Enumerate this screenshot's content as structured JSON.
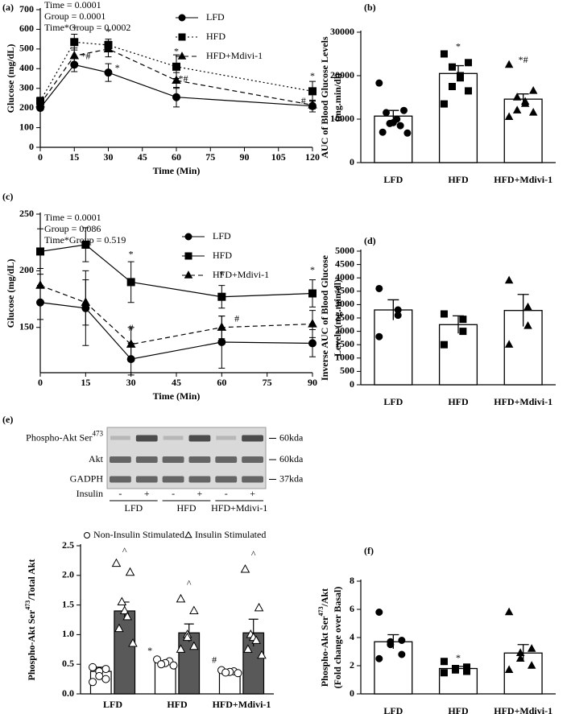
{
  "chart_data": [
    {
      "type": "line",
      "panel": "(a)",
      "stats": [
        "Time = 0.0001",
        "Group = 0.0001",
        "Time*Group = 0.0002"
      ],
      "xlabel": "Time (Min)",
      "ylabel": [
        "Glucose (mg/dL)"
      ],
      "x": [
        0,
        15,
        30,
        60,
        120
      ],
      "xlim": [
        0,
        120
      ],
      "xticks": [
        0,
        15,
        30,
        45,
        60,
        75,
        90,
        105,
        120
      ],
      "ylim": [
        0,
        700
      ],
      "yticks": [
        0,
        100,
        200,
        300,
        400,
        500,
        600,
        700
      ],
      "series": [
        {
          "name": "LFD",
          "color": "#000000",
          "marker": "circle",
          "dash": "solid",
          "values": [
            200,
            420,
            380,
            255,
            210
          ],
          "errors": [
            10,
            35,
            45,
            50,
            30
          ]
        },
        {
          "name": "HFD",
          "color": "#000000",
          "marker": "square",
          "dash": "dotted",
          "values": [
            235,
            535,
            520,
            410,
            285
          ],
          "errors": [
            20,
            40,
            30,
            60,
            50
          ]
        },
        {
          "name": "HFD+Mdivi-1",
          "color": "#000000",
          "marker": "triangle",
          "dash": "dashed",
          "values": [
            220,
            465,
            500,
            340,
            215
          ],
          "errors": [
            15,
            40,
            40,
            40,
            20
          ]
        }
      ],
      "annotations": [
        {
          "text": "*",
          "x": 15,
          "y": 600
        },
        {
          "text": "*#",
          "x": 20,
          "y": 460
        },
        {
          "text": "*",
          "x": 30,
          "y": 585
        },
        {
          "text": "*",
          "x": 34,
          "y": 400
        },
        {
          "text": "*",
          "x": 60,
          "y": 485
        },
        {
          "text": "*#",
          "x": 63,
          "y": 345
        },
        {
          "text": "*",
          "x": 120,
          "y": 360
        },
        {
          "text": "#",
          "x": 116,
          "y": 232
        }
      ]
    },
    {
      "type": "bar",
      "panel": "(b)",
      "ylabel": [
        "AUC of Blood Glucose Levels",
        "(mg.min/dl)"
      ],
      "categories": [
        "LFD",
        "HFD",
        "HFD+Mdivi-1"
      ],
      "values": [
        10700,
        20500,
        14600
      ],
      "errors": [
        1300,
        1800,
        1200
      ],
      "color": "#ffffff",
      "markers": [
        "circle",
        "square",
        "triangle"
      ],
      "points": [
        [
          18300,
          12000,
          11500,
          10000,
          9200,
          9000,
          8500,
          7000,
          6800
        ],
        [
          25000,
          23000,
          22000,
          20000,
          19500,
          17500,
          16500,
          13500
        ],
        [
          22500,
          16500,
          15000,
          14000,
          13500,
          12000,
          11500,
          10500
        ]
      ],
      "ylim": [
        0,
        30000
      ],
      "yticks": [
        0,
        10000,
        20000,
        30000
      ],
      "annotations": [
        {
          "text": "*",
          "category": 1,
          "y": 26500
        },
        {
          "text": "*#",
          "category": 2,
          "y": 23500
        }
      ]
    },
    {
      "type": "line",
      "panel": "(c)",
      "stats": [
        "Time = 0.0001",
        "Group = 0.086",
        "Time*Group = 0.519"
      ],
      "xlabel": "Time (Min)",
      "ylabel": [
        "Glucose (mg/dL)"
      ],
      "x": [
        0,
        15,
        30,
        60,
        90
      ],
      "xlim": [
        0,
        90
      ],
      "xticks": [
        0,
        15,
        30,
        45,
        60,
        75,
        90
      ],
      "ylim": [
        110,
        250
      ],
      "yticks": [
        150,
        200,
        250
      ],
      "series": [
        {
          "name": "LFD",
          "color": "#000000",
          "marker": "circle",
          "dash": "solid",
          "values": [
            172,
            167,
            122,
            137,
            136
          ],
          "errors": [
            15,
            33,
            14,
            23,
            12
          ]
        },
        {
          "name": "HFD",
          "color": "#000000",
          "marker": "square",
          "dash": "solid",
          "values": [
            217,
            223,
            190,
            177,
            180
          ],
          "errors": [
            20,
            15,
            18,
            10,
            12
          ]
        },
        {
          "name": "HFD+Mdivi-1",
          "color": "#000000",
          "marker": "triangle",
          "dash": "dashed",
          "values": [
            187,
            172,
            135,
            150,
            153
          ],
          "errors": [
            15,
            20,
            15,
            10,
            12
          ]
        }
      ],
      "annotations": [
        {
          "text": "*",
          "x": 30,
          "y": 214
        },
        {
          "text": "#",
          "x": 30,
          "y": 149
        },
        {
          "text": "*",
          "x": 60,
          "y": 196
        },
        {
          "text": "#",
          "x": 65,
          "y": 157
        },
        {
          "text": "*",
          "x": 90,
          "y": 200
        }
      ]
    },
    {
      "type": "bar",
      "panel": "(d)",
      "ylabel": [
        "Inverse AUC of Blood Glucose",
        "Levels (mg.min/dl)"
      ],
      "categories": [
        "LFD",
        "HFD",
        "HFD+Mdivi-1"
      ],
      "values": [
        2800,
        2250,
        2780
      ],
      "errors": [
        380,
        330,
        600
      ],
      "color": "#ffffff",
      "markers": [
        "circle",
        "square",
        "triangle"
      ],
      "points": [
        [
          3600,
          2800,
          2600,
          1800
        ],
        [
          2650,
          2450,
          2000,
          1500
        ],
        [
          3900,
          2900,
          2200,
          1500
        ]
      ],
      "ylim": [
        0,
        5000
      ],
      "yticks": [
        0,
        500,
        1000,
        1500,
        2000,
        2500,
        3000,
        3500,
        4000,
        4500,
        5000
      ]
    },
    {
      "type": "grouped_bar",
      "ylabel": [
        [
          "Phospho-Akt Ser",
          "473",
          "/Total Akt"
        ]
      ],
      "categories": [
        "LFD",
        "HFD",
        "HFD+Mdivi-1"
      ],
      "series": [
        {
          "name": "Non-Insulin Stimulated",
          "color": "#ffffff",
          "marker": "circle",
          "values": [
            0.38,
            0.53,
            0.38
          ],
          "errors": [
            0.07,
            0.03,
            0.02
          ],
          "points": [
            [
              0.45,
              0.42,
              0.38,
              0.3,
              0.25,
              0.2
            ],
            [
              0.58,
              0.55,
              0.52,
              0.5,
              0.48
            ],
            [
              0.4,
              0.38,
              0.37,
              0.36,
              0.35
            ]
          ]
        },
        {
          "name": "Insulin Stimulated",
          "color": "#595959",
          "marker": "triangle",
          "values": [
            1.4,
            1.03,
            1.03
          ],
          "errors": [
            0.15,
            0.15,
            0.23
          ],
          "points": [
            [
              2.2,
              2.05,
              1.55,
              1.4,
              1.3,
              1.1,
              0.85
            ],
            [
              1.6,
              1.4,
              1.0,
              0.95,
              0.8,
              0.75
            ],
            [
              2.1,
              1.45,
              1.0,
              0.95,
              0.9,
              0.75,
              0.65
            ]
          ]
        }
      ],
      "ylim": [
        0,
        2.5
      ],
      "yticks": [
        {
          "value": 0,
          "label": "0.0"
        },
        0.5,
        {
          "value": 1,
          "label": "1.0"
        },
        1.5,
        {
          "value": 2,
          "label": "2.0"
        },
        2.5
      ],
      "annotations": [
        {
          "text": "*",
          "category": 1,
          "series": 0,
          "y": 0.72
        },
        {
          "text": "#",
          "category": 2,
          "series": 0,
          "y": 0.56
        },
        {
          "text": "^",
          "category": 0,
          "series": 1,
          "y": 2.4
        },
        {
          "text": "^",
          "category": 1,
          "series": 1,
          "y": 1.85
        },
        {
          "text": "^",
          "category": 2,
          "series": 1,
          "y": 2.35
        }
      ]
    },
    {
      "type": "bar",
      "panel": "(f)",
      "ylabel": [
        [
          "Phospho-Akt Ser",
          "473",
          "/Akt"
        ],
        "(Fold change over Basal)"
      ],
      "categories": [
        "LFD",
        "HFD",
        "HFD+Mdivi-1"
      ],
      "values": [
        3.7,
        1.8,
        2.9
      ],
      "errors": [
        0.5,
        0.15,
        0.6
      ],
      "color": "#ffffff",
      "markers": [
        "circle",
        "square",
        "triangle"
      ],
      "points": [
        [
          5.8,
          3.8,
          3.7,
          3.5,
          2.8,
          2.5
        ],
        [
          2.3,
          1.9,
          1.8,
          1.7,
          1.6,
          1.5
        ],
        [
          5.8,
          3.2,
          2.9,
          2.5,
          2.0,
          1.7
        ]
      ],
      "ylim": [
        0,
        8
      ],
      "yticks": [
        0,
        2,
        4,
        6,
        8
      ],
      "annotations": [
        {
          "text": "*",
          "category": 1,
          "y": 2.5
        }
      ]
    }
  ],
  "blot": {
    "panel": "(e)",
    "rows": [
      [
        "Phospho-Akt Ser",
        "473"
      ],
      [
        "Akt"
      ],
      [
        "GADPH"
      ]
    ],
    "sizes": [
      "60kda",
      "60kda",
      "37kda"
    ],
    "insulin": "Insulin",
    "signs": [
      "-",
      "+",
      "-",
      "+",
      "-",
      "+"
    ],
    "groups": [
      "LFD",
      "HFD",
      "HFD+Mdivi-1"
    ]
  }
}
